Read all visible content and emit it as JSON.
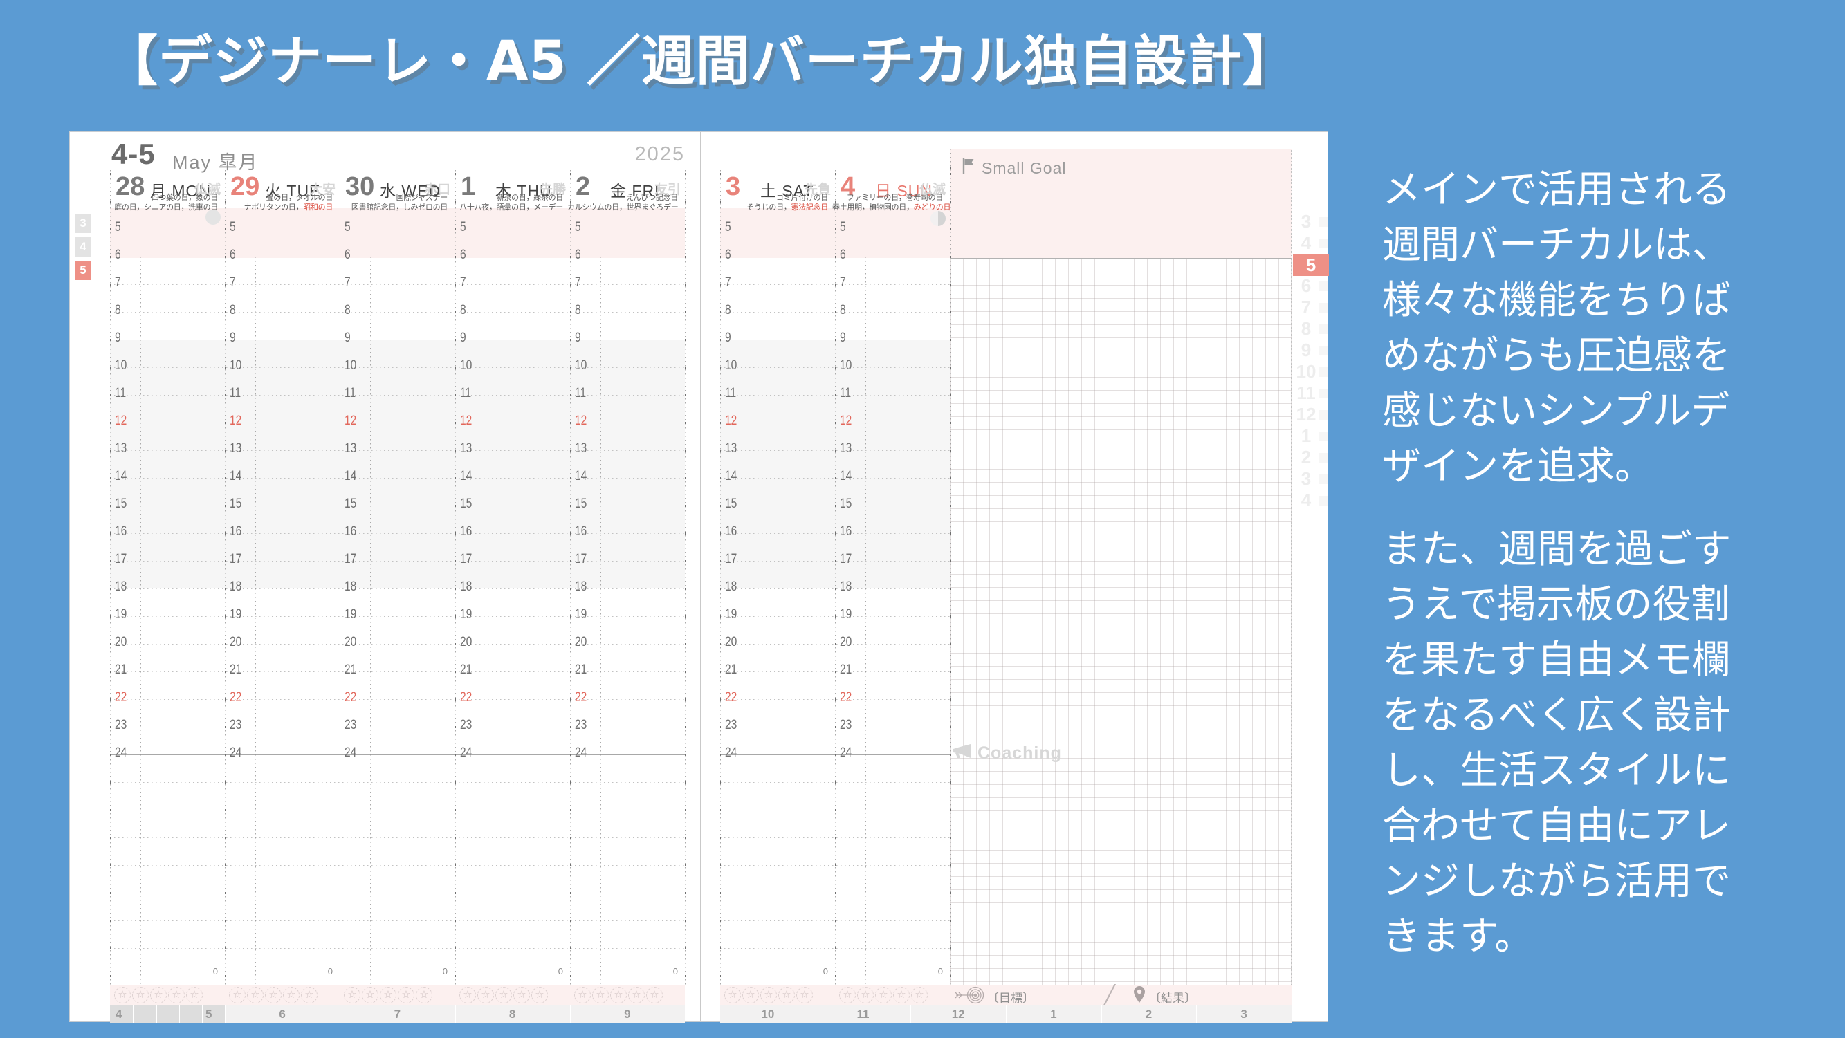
{
  "title": "【デジナーレ・A5 ／週間バーチカル独自設計】",
  "description": {
    "p1": "メインで活用される週間バーチカルは、様々な機能をちりばめながらも圧迫感を感じないシンプルデザインを追求。",
    "p2": "また、週間を過ごすうえで掲示板の役割を果たす自由メモ欄をなるべく広く設計し、生活スタイルに合わせて自由にアレンジしながら活用できます。"
  },
  "colors": {
    "background": "#5b9bd3",
    "page": "#ffffff",
    "pink_band": "#fcf0ef",
    "gray_band": "#f6f6f6",
    "salmon_accent": "#ee9086",
    "salmon_date": "#e8837a",
    "red_text": "#d94b3d",
    "red_hour": "#e2685c",
    "strip_bg": "#f2f1f1",
    "strip_highlight": "#dddddd",
    "text_dark": "#414141",
    "text_mid": "#6e6e6e",
    "text_gray": "#9b9b9b",
    "text_light": "#d5d5d5"
  },
  "planner": {
    "month_range": "4-5",
    "month_name": "May 皐月",
    "year": "2025",
    "hours_start": 5,
    "hours_end": 24,
    "red_hours": [
      12,
      22
    ],
    "stars_per_day": 5,
    "star_glyph": "☆",
    "zero_marker": "0",
    "labels": {
      "small_goal": "Small Goal",
      "coaching": "Coaching",
      "goal": "〔目標〕",
      "result": "〔結果〕",
      "slash": "╱"
    },
    "icons": {
      "small_goal": "flag-icon",
      "coaching": "megaphone-icon",
      "goal": "target-icon",
      "result": "pin-icon",
      "monday_moon": "new-moon-icon",
      "sunday_moon": "first-quarter-moon-icon"
    },
    "days": [
      {
        "date": "28",
        "date_red": false,
        "weekday": "月",
        "weekday_en": "MON",
        "weekday_red": false,
        "rokuyo": "仏滅",
        "holiday_line1": [
          {
            "text": "四つ葉の日，象の日"
          }
        ],
        "holiday_line2": [
          {
            "text": "庭の日，シニアの日，洗車の日"
          }
        ],
        "moon": "new-moon",
        "page": "left"
      },
      {
        "date": "29",
        "date_red": true,
        "weekday": "火",
        "weekday_en": "TUE",
        "weekday_red": false,
        "rokuyo": "大安",
        "holiday_line1": [
          {
            "text": "畳の日，タオルの日"
          }
        ],
        "holiday_line2": [
          {
            "text": "ナポリタンの日，"
          },
          {
            "text": "昭和の日",
            "red": true
          }
        ],
        "moon": null,
        "page": "left"
      },
      {
        "date": "30",
        "date_red": false,
        "weekday": "水",
        "weekday_en": "WED",
        "weekday_red": false,
        "rokuyo": "赤口",
        "holiday_line1": [
          {
            "text": "国際ジャズデー"
          }
        ],
        "holiday_line2": [
          {
            "text": "図書館記念日，しみゼロの日"
          }
        ],
        "moon": null,
        "page": "left"
      },
      {
        "date": "1",
        "date_red": false,
        "weekday": "木",
        "weekday_en": "THU",
        "weekday_red": false,
        "rokuyo": "先勝",
        "holiday_line1": [
          {
            "text": "新茶の日，緑茶の日"
          }
        ],
        "holiday_line2": [
          {
            "text": "八十八夜，語彙の日，メーデー"
          }
        ],
        "moon": null,
        "page": "left"
      },
      {
        "date": "2",
        "date_red": false,
        "weekday": "金",
        "weekday_en": "FRI",
        "weekday_red": false,
        "rokuyo": "友引",
        "holiday_line1": [
          {
            "text": "えんぴつ記念日"
          }
        ],
        "holiday_line2": [
          {
            "text": "カルシウムの日，世界まぐろデー"
          }
        ],
        "moon": null,
        "page": "left"
      },
      {
        "date": "3",
        "date_red": true,
        "weekday": "土",
        "weekday_en": "SAT",
        "weekday_red": false,
        "rokuyo": "先負",
        "holiday_line1": [
          {
            "text": "ゴミ片付けの日"
          }
        ],
        "holiday_line2": [
          {
            "text": "そうじの日，"
          },
          {
            "text": "憲法記念日",
            "red": true
          }
        ],
        "moon": null,
        "page": "right"
      },
      {
        "date": "4",
        "date_red": true,
        "weekday": "日",
        "weekday_en": "SUN",
        "weekday_red": true,
        "rokuyo": "仏滅",
        "holiday_line1": [
          {
            "text": "ファミリーの日，巻寿司の日"
          }
        ],
        "holiday_line2": [
          {
            "text": "春土用明，植物園の日，"
          },
          {
            "text": "みどりの日",
            "red": true
          }
        ],
        "moon": "first-quarter-moon",
        "page": "right"
      }
    ],
    "left_edge_tabs": {
      "items": [
        "3",
        "4",
        "5"
      ],
      "active_index": 2
    },
    "right_edge_tabs": {
      "items": [
        "3",
        "4",
        "5",
        "6",
        "7",
        "8",
        "9",
        "10",
        "11",
        "12",
        "1",
        "2",
        "3",
        "4"
      ],
      "active_index": 2
    },
    "bottom_left_months": {
      "highlight": [
        "4",
        "5"
      ],
      "cells": [
        "6",
        "7",
        "8",
        "9"
      ]
    },
    "bottom_right_months": {
      "cells": [
        "10",
        "11",
        "12",
        "1",
        "2",
        "3"
      ]
    }
  }
}
